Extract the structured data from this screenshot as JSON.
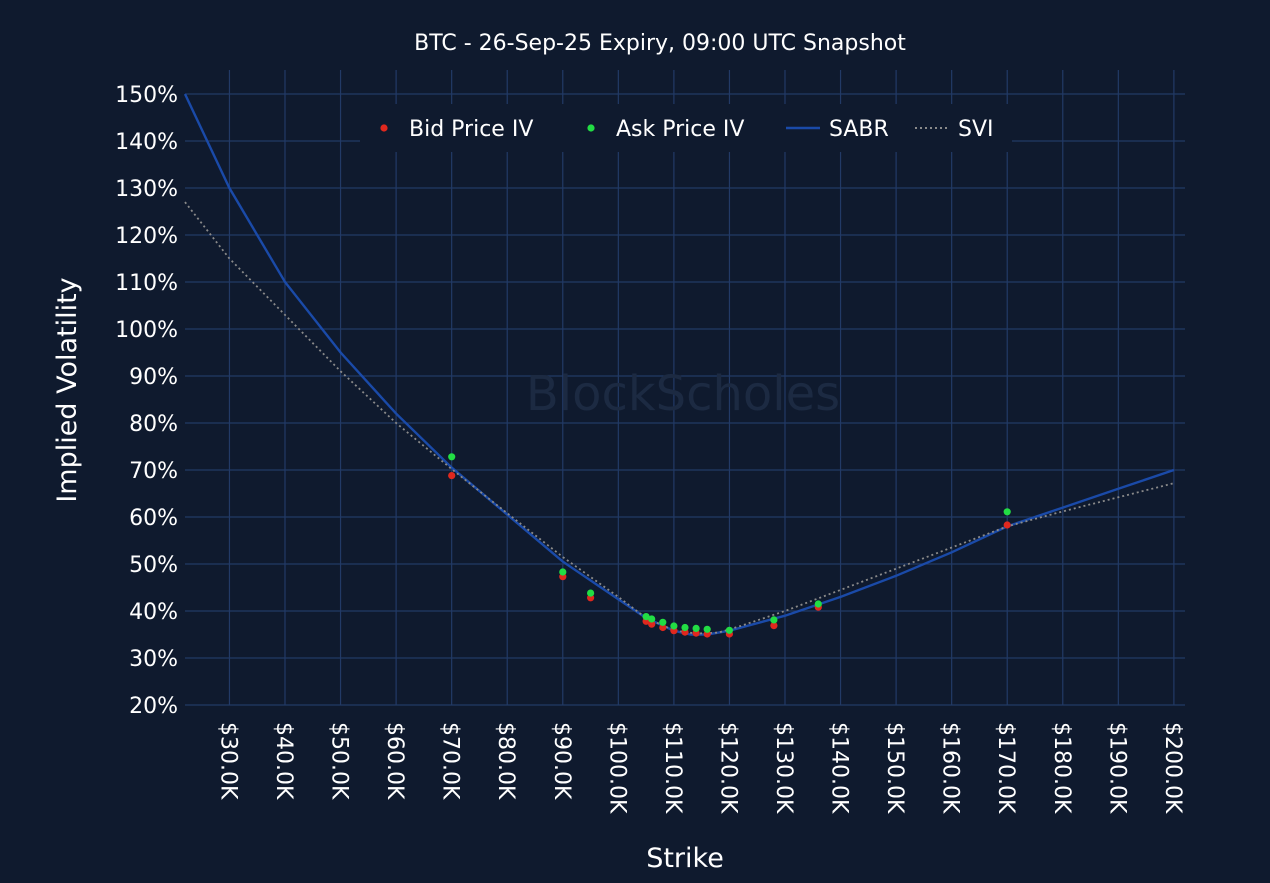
{
  "chart_data": {
    "type": "scatter",
    "title": "BTC - 26-Sep-25 Expiry, 09:00 UTC Snapshot",
    "xlabel": "Strike",
    "ylabel": "Implied Volatility",
    "watermark": "BlockScholes",
    "xlim": [
      22,
      202
    ],
    "ylim": [
      20,
      150
    ],
    "x_unit": "thousand USD",
    "y_unit": "percent",
    "x_ticks": [
      {
        "value": 30,
        "label": "$30.0K"
      },
      {
        "value": 40,
        "label": "$40.0K"
      },
      {
        "value": 50,
        "label": "$50.0K"
      },
      {
        "value": 60,
        "label": "$60.0K"
      },
      {
        "value": 70,
        "label": "$70.0K"
      },
      {
        "value": 80,
        "label": "$80.0K"
      },
      {
        "value": 90,
        "label": "$90.0K"
      },
      {
        "value": 100,
        "label": "$100.0K"
      },
      {
        "value": 110,
        "label": "$110.0K"
      },
      {
        "value": 120,
        "label": "$120.0K"
      },
      {
        "value": 130,
        "label": "$130.0K"
      },
      {
        "value": 140,
        "label": "$140.0K"
      },
      {
        "value": 150,
        "label": "$150.0K"
      },
      {
        "value": 160,
        "label": "$160.0K"
      },
      {
        "value": 170,
        "label": "$170.0K"
      },
      {
        "value": 180,
        "label": "$180.0K"
      },
      {
        "value": 190,
        "label": "$190.0K"
      },
      {
        "value": 200,
        "label": "$200.0K"
      }
    ],
    "y_ticks": [
      {
        "value": 20,
        "label": "20%"
      },
      {
        "value": 30,
        "label": "30%"
      },
      {
        "value": 40,
        "label": "40%"
      },
      {
        "value": 50,
        "label": "50%"
      },
      {
        "value": 60,
        "label": "60%"
      },
      {
        "value": 70,
        "label": "70%"
      },
      {
        "value": 80,
        "label": "80%"
      },
      {
        "value": 90,
        "label": "90%"
      },
      {
        "value": 100,
        "label": "100%"
      },
      {
        "value": 110,
        "label": "110%"
      },
      {
        "value": 120,
        "label": "120%"
      },
      {
        "value": 130,
        "label": "130%"
      },
      {
        "value": 140,
        "label": "140%"
      },
      {
        "value": 150,
        "label": "150%"
      }
    ],
    "grid": true,
    "legend_position": "top",
    "series": [
      {
        "name": "Bid Price IV",
        "kind": "markers",
        "color": "#e0281e",
        "points": [
          [
            70,
            68.8
          ],
          [
            90,
            47.3
          ],
          [
            95,
            42.8
          ],
          [
            105,
            37.8
          ],
          [
            106,
            37.2
          ],
          [
            108,
            36.5
          ],
          [
            110,
            35.8
          ],
          [
            112,
            35.5
          ],
          [
            114,
            35.3
          ],
          [
            116,
            35.1
          ],
          [
            120,
            35.1
          ],
          [
            128,
            36.9
          ],
          [
            136,
            40.8
          ],
          [
            170,
            58.3
          ]
        ]
      },
      {
        "name": "Ask Price IV",
        "kind": "markers",
        "color": "#22dd44",
        "points": [
          [
            70,
            72.8
          ],
          [
            90,
            48.3
          ],
          [
            95,
            43.8
          ],
          [
            105,
            38.8
          ],
          [
            106,
            38.3
          ],
          [
            108,
            37.6
          ],
          [
            110,
            36.8
          ],
          [
            112,
            36.5
          ],
          [
            114,
            36.3
          ],
          [
            116,
            36.1
          ],
          [
            120,
            35.9
          ],
          [
            128,
            38.1
          ],
          [
            136,
            41.5
          ],
          [
            170,
            61.1
          ]
        ]
      },
      {
        "name": "SABR",
        "kind": "line",
        "color": "#1a4aa8",
        "points": [
          [
            22,
            150
          ],
          [
            30,
            130
          ],
          [
            40,
            110
          ],
          [
            50,
            95
          ],
          [
            60,
            82
          ],
          [
            70,
            70.5
          ],
          [
            80,
            60.5
          ],
          [
            90,
            50.5
          ],
          [
            100,
            42.5
          ],
          [
            105,
            38.5
          ],
          [
            110,
            35.8
          ],
          [
            113,
            35
          ],
          [
            116,
            35
          ],
          [
            120,
            35.8
          ],
          [
            130,
            39
          ],
          [
            140,
            43
          ],
          [
            150,
            47.5
          ],
          [
            160,
            52.5
          ],
          [
            170,
            58
          ],
          [
            180,
            62
          ],
          [
            190,
            66
          ],
          [
            200,
            70
          ]
        ]
      },
      {
        "name": "SVI",
        "kind": "dotted-line",
        "color": "#8a8a8a",
        "points": [
          [
            22,
            127
          ],
          [
            30,
            115
          ],
          [
            40,
            103
          ],
          [
            50,
            91
          ],
          [
            60,
            80
          ],
          [
            70,
            70.2
          ],
          [
            80,
            60.8
          ],
          [
            90,
            51.5
          ],
          [
            100,
            43
          ],
          [
            105,
            38.5
          ],
          [
            110,
            35.9
          ],
          [
            114,
            35.2
          ],
          [
            118,
            35.4
          ],
          [
            122,
            36.8
          ],
          [
            130,
            40
          ],
          [
            140,
            44.5
          ],
          [
            150,
            49
          ],
          [
            160,
            53.5
          ],
          [
            170,
            58
          ],
          [
            180,
            61.2
          ],
          [
            190,
            64.2
          ],
          [
            200,
            67.2
          ]
        ]
      }
    ]
  }
}
